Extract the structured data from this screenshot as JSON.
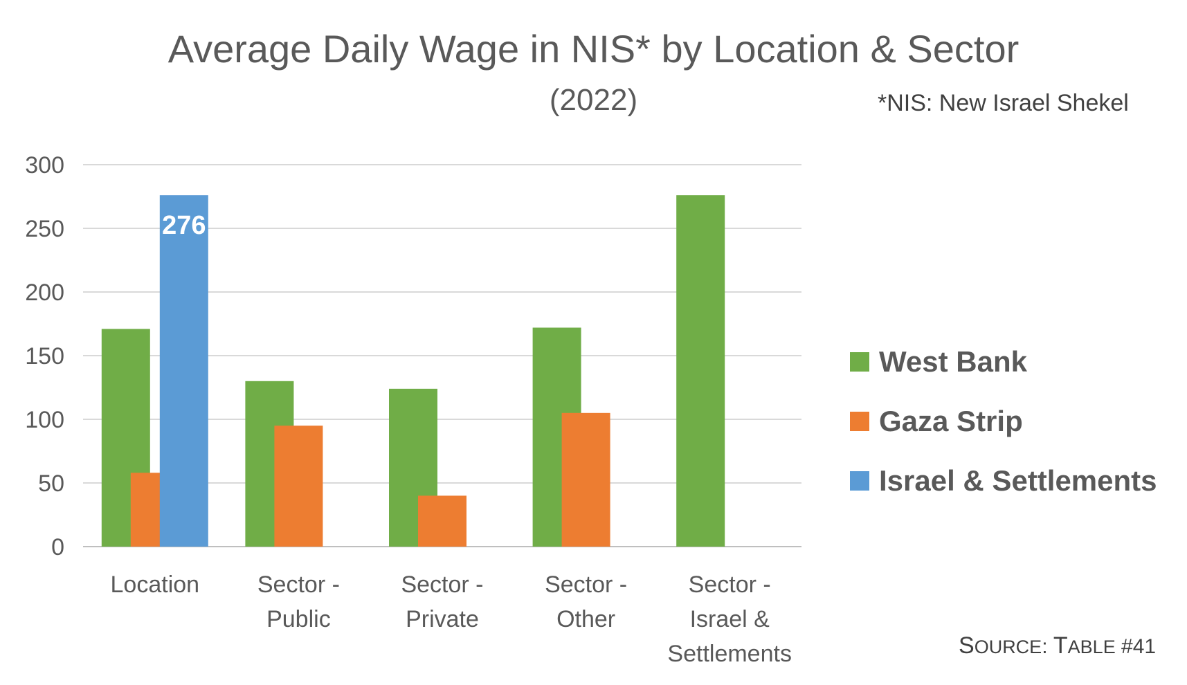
{
  "chart_data": {
    "type": "bar",
    "title": "Average Daily Wage in NIS* by Location & Sector",
    "subtitle": "(2022)",
    "note": "*NIS: New Israel Shekel",
    "source": {
      "word": "Source",
      "separator": ": ",
      "table": "Table",
      "number": " #41"
    },
    "categories": [
      [
        "Location"
      ],
      [
        "Sector -",
        "Public"
      ],
      [
        "Sector -",
        "Private"
      ],
      [
        "Sector -",
        "Other"
      ],
      [
        "Sector -",
        "Israel &",
        "Settlements"
      ]
    ],
    "series": [
      {
        "name": "West Bank",
        "color": "#70AD47",
        "values": [
          171,
          130,
          124,
          172,
          276
        ]
      },
      {
        "name": "Gaza Strip",
        "color": "#ED7D31",
        "values": [
          58,
          95,
          40,
          105,
          null
        ]
      },
      {
        "name": "Israel & Settlements",
        "color": "#5B9BD5",
        "values": [
          276,
          null,
          null,
          null,
          null
        ]
      }
    ],
    "data_labels": [
      {
        "series": 2,
        "category": 0,
        "text": "276"
      }
    ],
    "ylim": [
      0,
      300
    ],
    "yticks": [
      0,
      50,
      100,
      150,
      200,
      250,
      300
    ],
    "xlabel": "",
    "ylabel": "",
    "grid": true,
    "legend_position": "right"
  }
}
